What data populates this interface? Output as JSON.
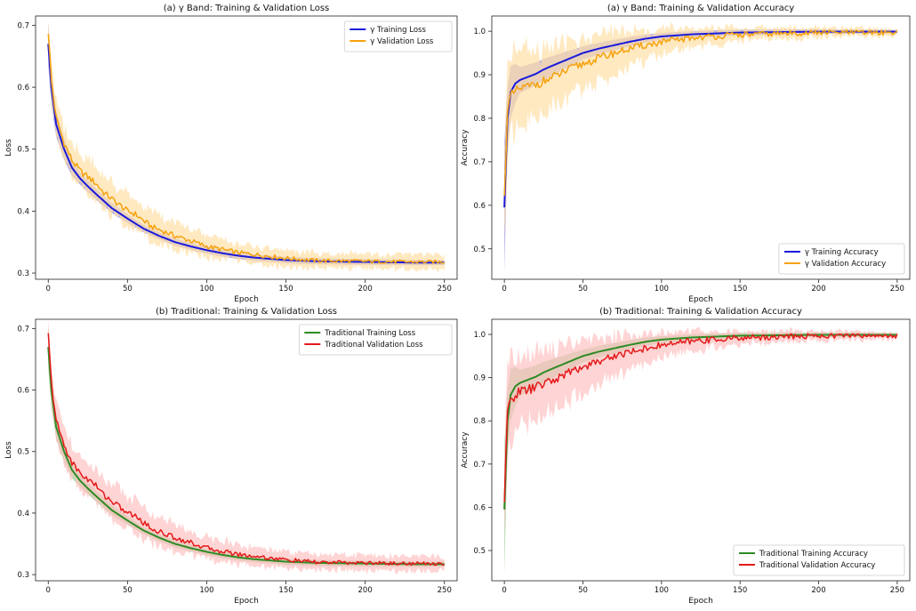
{
  "chart_data": [
    {
      "type": "line",
      "title": "(a) γ Band: Training & Validation Loss",
      "xlabel": "Epoch",
      "ylabel": "Loss",
      "xlim": [
        -8,
        258
      ],
      "ylim": [
        0.29,
        0.715
      ],
      "xticks": [
        0,
        50,
        100,
        150,
        200,
        250
      ],
      "yticks": [
        0.3,
        0.4,
        0.5,
        0.6,
        0.7
      ],
      "legend_loc": "top-right",
      "series": [
        {
          "name": "γ Training Loss",
          "color": "#1a1adc",
          "band_color": "#9b8fd6",
          "points": [
            [
              0,
              0.67
            ],
            [
              2,
              0.6
            ],
            [
              5,
              0.54
            ],
            [
              10,
              0.5
            ],
            [
              15,
              0.47
            ],
            [
              20,
              0.453
            ],
            [
              25,
              0.44
            ],
            [
              30,
              0.428
            ],
            [
              40,
              0.405
            ],
            [
              50,
              0.388
            ],
            [
              60,
              0.372
            ],
            [
              70,
              0.36
            ],
            [
              80,
              0.35
            ],
            [
              90,
              0.343
            ],
            [
              100,
              0.337
            ],
            [
              110,
              0.332
            ],
            [
              120,
              0.328
            ],
            [
              130,
              0.325
            ],
            [
              140,
              0.323
            ],
            [
              150,
              0.321
            ],
            [
              170,
              0.319
            ],
            [
              200,
              0.318
            ],
            [
              230,
              0.317
            ],
            [
              250,
              0.317
            ]
          ],
          "band": [
            [
              0,
              0.035
            ],
            [
              5,
              0.02
            ],
            [
              20,
              0.01
            ],
            [
              60,
              0.006
            ],
            [
              250,
              0.004
            ]
          ]
        },
        {
          "name": "γ Validation Loss",
          "color": "#f5a20f",
          "band_color": "#ffe0a6",
          "points": [
            [
              0,
              0.69
            ],
            [
              2,
              0.61
            ],
            [
              5,
              0.55
            ],
            [
              10,
              0.51
            ],
            [
              15,
              0.482
            ],
            [
              20,
              0.465
            ],
            [
              25,
              0.455
            ],
            [
              30,
              0.445
            ],
            [
              35,
              0.43
            ],
            [
              40,
              0.42
            ],
            [
              45,
              0.41
            ],
            [
              50,
              0.4
            ],
            [
              55,
              0.395
            ],
            [
              60,
              0.385
            ],
            [
              65,
              0.375
            ],
            [
              70,
              0.37
            ],
            [
              80,
              0.36
            ],
            [
              90,
              0.352
            ],
            [
              100,
              0.343
            ],
            [
              110,
              0.338
            ],
            [
              120,
              0.333
            ],
            [
              130,
              0.33
            ],
            [
              140,
              0.327
            ],
            [
              150,
              0.324
            ],
            [
              170,
              0.32
            ],
            [
              200,
              0.319
            ],
            [
              230,
              0.318
            ],
            [
              250,
              0.318
            ]
          ],
          "band": [
            [
              0,
              0.03
            ],
            [
              10,
              0.03
            ],
            [
              30,
              0.03
            ],
            [
              60,
              0.025
            ],
            [
              100,
              0.018
            ],
            [
              150,
              0.014
            ],
            [
              250,
              0.012
            ]
          ],
          "jitter": 0.006
        }
      ]
    },
    {
      "type": "line",
      "title": "(a) γ Band: Training & Validation Accuracy",
      "xlabel": "Epoch",
      "ylabel": "Accuracy",
      "xlim": [
        -8,
        258
      ],
      "ylim": [
        0.43,
        1.035
      ],
      "xticks": [
        0,
        50,
        100,
        150,
        200,
        250
      ],
      "yticks": [
        0.5,
        0.6,
        0.7,
        0.8,
        0.9,
        1.0
      ],
      "legend_loc": "bottom-right",
      "series": [
        {
          "name": "γ Training Accuracy",
          "color": "#1a1adc",
          "band_color": "#9b8fd6",
          "points": [
            [
              0,
              0.595
            ],
            [
              1,
              0.7
            ],
            [
              2,
              0.8
            ],
            [
              4,
              0.86
            ],
            [
              7,
              0.88
            ],
            [
              10,
              0.888
            ],
            [
              15,
              0.895
            ],
            [
              20,
              0.902
            ],
            [
              25,
              0.912
            ],
            [
              30,
              0.92
            ],
            [
              40,
              0.935
            ],
            [
              50,
              0.95
            ],
            [
              60,
              0.96
            ],
            [
              70,
              0.968
            ],
            [
              80,
              0.976
            ],
            [
              90,
              0.983
            ],
            [
              100,
              0.988
            ],
            [
              120,
              0.993
            ],
            [
              150,
              0.997
            ],
            [
              200,
              0.999
            ],
            [
              250,
              0.999
            ]
          ],
          "band": [
            [
              0,
              0.15
            ],
            [
              2,
              0.07
            ],
            [
              10,
              0.03
            ],
            [
              50,
              0.015
            ],
            [
              100,
              0.008
            ],
            [
              250,
              0.004
            ]
          ]
        },
        {
          "name": "γ Validation Accuracy",
          "color": "#f5a20f",
          "band_color": "#ffe0a6",
          "points": [
            [
              0,
              0.615
            ],
            [
              1,
              0.72
            ],
            [
              2,
              0.82
            ],
            [
              4,
              0.85
            ],
            [
              7,
              0.86
            ],
            [
              10,
              0.868
            ],
            [
              15,
              0.872
            ],
            [
              20,
              0.878
            ],
            [
              25,
              0.885
            ],
            [
              30,
              0.892
            ],
            [
              40,
              0.91
            ],
            [
              50,
              0.925
            ],
            [
              60,
              0.938
            ],
            [
              70,
              0.95
            ],
            [
              80,
              0.96
            ],
            [
              90,
              0.968
            ],
            [
              100,
              0.975
            ],
            [
              120,
              0.985
            ],
            [
              150,
              0.992
            ],
            [
              200,
              0.997
            ],
            [
              250,
              0.997
            ]
          ],
          "band": [
            [
              0,
              0.1
            ],
            [
              5,
              0.1
            ],
            [
              20,
              0.08
            ],
            [
              50,
              0.06
            ],
            [
              100,
              0.03
            ],
            [
              150,
              0.015
            ],
            [
              250,
              0.008
            ]
          ],
          "jitter": 0.012
        }
      ]
    },
    {
      "type": "line",
      "title": "(b) Traditional: Training & Validation Loss",
      "xlabel": "Epoch",
      "ylabel": "Loss",
      "xlim": [
        -8,
        258
      ],
      "ylim": [
        0.29,
        0.715
      ],
      "xticks": [
        0,
        50,
        100,
        150,
        200,
        250
      ],
      "yticks": [
        0.3,
        0.4,
        0.5,
        0.6,
        0.7
      ],
      "legend_loc": "top-right",
      "series": [
        {
          "name": "Traditional Training Loss",
          "color": "#2e8b24",
          "band_color": "#9ccc90",
          "points": [
            [
              0,
              0.67
            ],
            [
              2,
              0.6
            ],
            [
              5,
              0.54
            ],
            [
              10,
              0.5
            ],
            [
              15,
              0.47
            ],
            [
              20,
              0.453
            ],
            [
              25,
              0.44
            ],
            [
              30,
              0.428
            ],
            [
              40,
              0.405
            ],
            [
              50,
              0.388
            ],
            [
              60,
              0.372
            ],
            [
              70,
              0.36
            ],
            [
              80,
              0.35
            ],
            [
              90,
              0.343
            ],
            [
              100,
              0.337
            ],
            [
              110,
              0.332
            ],
            [
              120,
              0.328
            ],
            [
              130,
              0.325
            ],
            [
              140,
              0.323
            ],
            [
              150,
              0.321
            ],
            [
              170,
              0.319
            ],
            [
              200,
              0.318
            ],
            [
              230,
              0.317
            ],
            [
              250,
              0.317
            ]
          ],
          "band": [
            [
              0,
              0.035
            ],
            [
              5,
              0.02
            ],
            [
              20,
              0.01
            ],
            [
              60,
              0.006
            ],
            [
              250,
              0.004
            ]
          ]
        },
        {
          "name": "Traditional Validation Loss",
          "color": "#e41a1a",
          "band_color": "#ffc2c2",
          "points": [
            [
              0,
              0.69
            ],
            [
              2,
              0.61
            ],
            [
              5,
              0.55
            ],
            [
              10,
              0.51
            ],
            [
              15,
              0.482
            ],
            [
              20,
              0.465
            ],
            [
              25,
              0.455
            ],
            [
              30,
              0.445
            ],
            [
              35,
              0.43
            ],
            [
              40,
              0.42
            ],
            [
              45,
              0.41
            ],
            [
              50,
              0.4
            ],
            [
              55,
              0.395
            ],
            [
              60,
              0.385
            ],
            [
              65,
              0.375
            ],
            [
              70,
              0.37
            ],
            [
              80,
              0.36
            ],
            [
              90,
              0.352
            ],
            [
              100,
              0.343
            ],
            [
              110,
              0.338
            ],
            [
              120,
              0.333
            ],
            [
              130,
              0.33
            ],
            [
              140,
              0.327
            ],
            [
              150,
              0.324
            ],
            [
              170,
              0.32
            ],
            [
              200,
              0.319
            ],
            [
              230,
              0.318
            ],
            [
              250,
              0.318
            ]
          ],
          "band": [
            [
              0,
              0.03
            ],
            [
              10,
              0.03
            ],
            [
              30,
              0.03
            ],
            [
              60,
              0.025
            ],
            [
              100,
              0.018
            ],
            [
              150,
              0.014
            ],
            [
              250,
              0.012
            ]
          ],
          "jitter": 0.006
        }
      ]
    },
    {
      "type": "line",
      "title": "(b) Traditional: Training & Validation Accuracy",
      "xlabel": "Epoch",
      "ylabel": "Accuracy",
      "xlim": [
        -8,
        258
      ],
      "ylim": [
        0.43,
        1.035
      ],
      "xticks": [
        0,
        50,
        100,
        150,
        200,
        250
      ],
      "yticks": [
        0.5,
        0.6,
        0.7,
        0.8,
        0.9,
        1.0
      ],
      "legend_loc": "bottom-right",
      "series": [
        {
          "name": "Traditional Training Accuracy",
          "color": "#2e8b24",
          "band_color": "#9ccc90",
          "points": [
            [
              0,
              0.595
            ],
            [
              1,
              0.7
            ],
            [
              2,
              0.8
            ],
            [
              4,
              0.86
            ],
            [
              7,
              0.88
            ],
            [
              10,
              0.888
            ],
            [
              15,
              0.895
            ],
            [
              20,
              0.902
            ],
            [
              25,
              0.912
            ],
            [
              30,
              0.92
            ],
            [
              40,
              0.935
            ],
            [
              50,
              0.95
            ],
            [
              60,
              0.96
            ],
            [
              70,
              0.968
            ],
            [
              80,
              0.976
            ],
            [
              90,
              0.983
            ],
            [
              100,
              0.988
            ],
            [
              120,
              0.993
            ],
            [
              150,
              0.997
            ],
            [
              200,
              0.999
            ],
            [
              250,
              0.999
            ]
          ],
          "band": [
            [
              0,
              0.15
            ],
            [
              2,
              0.07
            ],
            [
              10,
              0.03
            ],
            [
              50,
              0.015
            ],
            [
              100,
              0.008
            ],
            [
              250,
              0.004
            ]
          ]
        },
        {
          "name": "Traditional Validation Accuracy",
          "color": "#e41a1a",
          "band_color": "#ffc2c2",
          "points": [
            [
              0,
              0.615
            ],
            [
              1,
              0.72
            ],
            [
              2,
              0.82
            ],
            [
              4,
              0.85
            ],
            [
              7,
              0.86
            ],
            [
              10,
              0.868
            ],
            [
              15,
              0.872
            ],
            [
              20,
              0.878
            ],
            [
              25,
              0.885
            ],
            [
              30,
              0.892
            ],
            [
              40,
              0.91
            ],
            [
              50,
              0.925
            ],
            [
              60,
              0.938
            ],
            [
              70,
              0.95
            ],
            [
              80,
              0.96
            ],
            [
              90,
              0.968
            ],
            [
              100,
              0.975
            ],
            [
              120,
              0.985
            ],
            [
              150,
              0.992
            ],
            [
              200,
              0.997
            ],
            [
              250,
              0.997
            ]
          ],
          "band": [
            [
              0,
              0.1
            ],
            [
              5,
              0.1
            ],
            [
              20,
              0.08
            ],
            [
              50,
              0.06
            ],
            [
              100,
              0.03
            ],
            [
              150,
              0.015
            ],
            [
              250,
              0.008
            ]
          ],
          "jitter": 0.012
        }
      ]
    }
  ]
}
